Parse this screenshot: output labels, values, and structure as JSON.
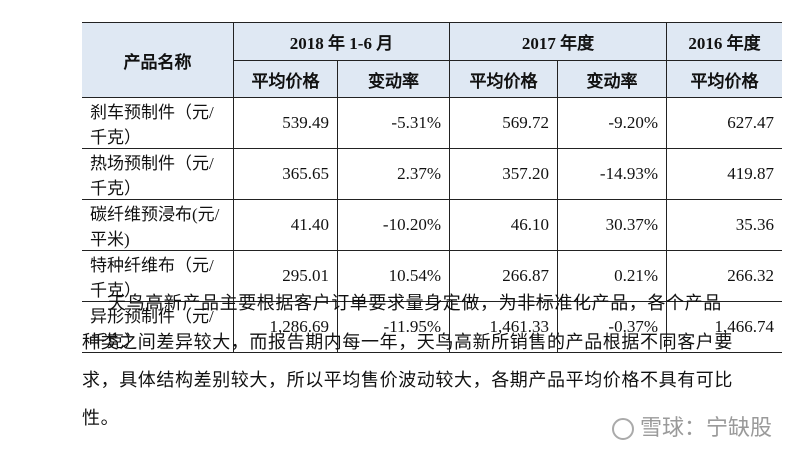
{
  "table": {
    "header": {
      "first": "产品名称",
      "groups": [
        "2018 年 1-6 月",
        "2017 年度",
        "2016 年度"
      ],
      "subheaders": [
        "平均价格",
        "变动率",
        "平均价格",
        "变动率",
        "平均价格"
      ]
    },
    "rows": [
      [
        "刹车预制件（元/千克）",
        "539.49",
        "-5.31%",
        "569.72",
        "-9.20%",
        "627.47"
      ],
      [
        "热场预制件（元/千克）",
        "365.65",
        "2.37%",
        "357.20",
        "-14.93%",
        "419.87"
      ],
      [
        "碳纤维预浸布(元/平米)",
        "41.40",
        "-10.20%",
        "46.10",
        "30.37%",
        "35.36"
      ],
      [
        "特种纤维布（元/千克）",
        "295.01",
        "10.54%",
        "266.87",
        "0.21%",
        "266.32"
      ],
      [
        "异形预制件（元/千克）",
        "1,286.69",
        "-11.95%",
        "1,461.33",
        "-0.37%",
        "1,466.74"
      ]
    ]
  },
  "paragraph": [
    "天鸟高新产品主要根据客户订单要求量身定做，为非标准化产品，各个产品",
    "种类之间差异较大，而报告期内每一年，天鸟高新所销售的产品根据不同客户要",
    "求，具体结构差别较大，所以平均售价波动较大，各期产品平均价格不具有可比",
    "性。"
  ],
  "watermark": "雪球：宁缺股"
}
